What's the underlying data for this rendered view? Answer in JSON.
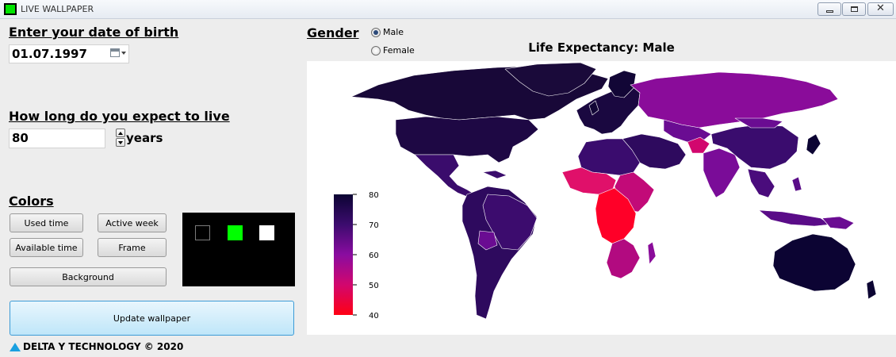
{
  "window": {
    "title": "LIVE WALLPAPER",
    "close_glyph": "✕"
  },
  "birth": {
    "label": "Enter your date of birth",
    "value": "01.07.1997"
  },
  "expect": {
    "label": "How long do you expect to live",
    "value": "80",
    "unit": "years"
  },
  "colors": {
    "label": "Colors",
    "buttons": {
      "used": "Used time",
      "active": "Active week",
      "available": "Available time",
      "frame": "Frame",
      "background": "Background"
    },
    "preview": {
      "used": "#000000",
      "available": "#00ff00",
      "frame": "#ffffff"
    }
  },
  "update_button": "Update wallpaper",
  "footer": "DELTA Y TECHNOLOGY © 2020",
  "gender": {
    "label": "Gender",
    "options": [
      "Male",
      "Female"
    ],
    "selected": "Male"
  },
  "chart_data": {
    "type": "heatmap",
    "title": "Life Expectancy: Male",
    "colorbar": {
      "min": 40,
      "max": 80,
      "ticks": [
        "80",
        "70",
        "60",
        "50",
        "40"
      ],
      "colors": [
        "#0c0433",
        "#3c0c6e",
        "#8a0ca0",
        "#d2076e",
        "#ff0014"
      ]
    }
  }
}
